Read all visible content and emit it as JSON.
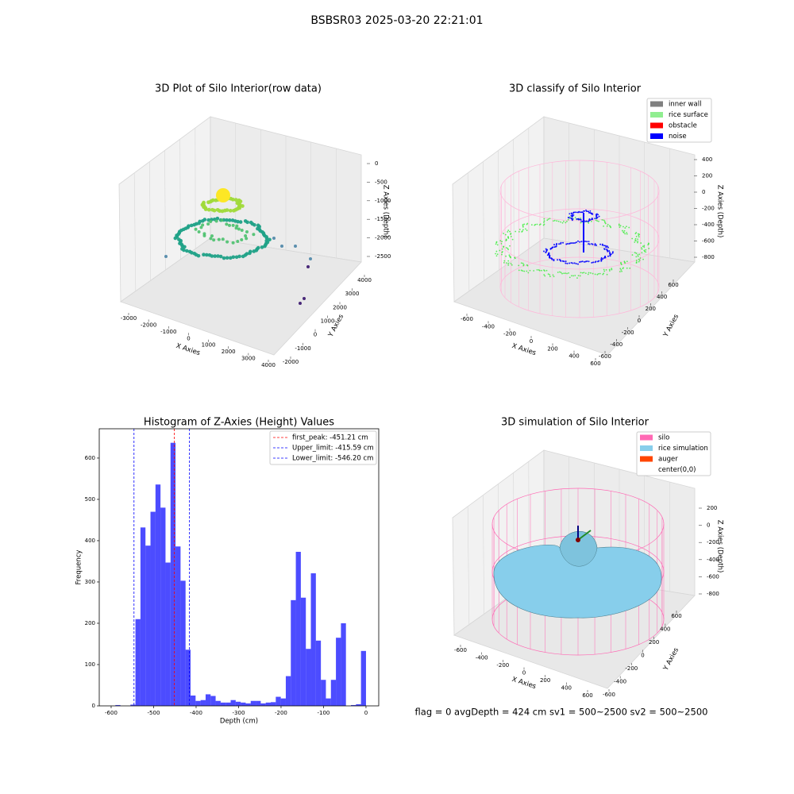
{
  "figure_title": "BSBSR03 2025-03-20 22:21:01",
  "status_text": "flag = 0     avgDepth = 424 cm  sv1 = 500~2500  sv2 = 500~2500",
  "chart_data": [
    {
      "type": "scatter3d",
      "title": "3D Plot of Silo Interior(row data)",
      "xlabel": "X Axies",
      "ylabel": "Y Axies",
      "zlabel": "Z Axies (Depth)",
      "xticks": [
        -3000,
        -2000,
        -1000,
        0,
        1000,
        2000,
        3000,
        4000
      ],
      "yticks": [
        -2000,
        -1000,
        0,
        1000,
        2000,
        3000,
        4000
      ],
      "zticks": [
        0,
        -500,
        -1000,
        -1500,
        -2000,
        -2500
      ]
    },
    {
      "type": "scatter3d",
      "title": "3D classify of Silo Interior",
      "xlabel": "X Axies",
      "ylabel": "Y Axies",
      "zlabel": "Z Axies (Depth)",
      "xticks": [
        -600,
        -400,
        -200,
        0,
        200,
        400,
        600
      ],
      "yticks": [
        -600,
        -400,
        -200,
        0,
        200,
        400,
        600
      ],
      "zticks": [
        400,
        200,
        0,
        -200,
        -400,
        -600,
        -800
      ],
      "legend": [
        {
          "name": "inner wall",
          "color": "#808080"
        },
        {
          "name": "rice surface",
          "color": "#90ee90"
        },
        {
          "name": "obstacle",
          "color": "#ff0000"
        },
        {
          "name": "noise",
          "color": "#0000ff"
        }
      ]
    },
    {
      "type": "histogram",
      "title": "Histogram of Z-Axies (Height) Values",
      "xlabel": "Depth (cm)",
      "ylabel": "Frequency",
      "color": "#0000ff",
      "bins": [
        -590,
        -578.2,
        -566.4,
        -554.6,
        -542.8,
        -531,
        -519.2,
        -507.4,
        -495.6,
        -483.8,
        -472,
        -460.2,
        -448.4,
        -436.6,
        -424.8,
        -413,
        -401.2,
        -389.4,
        -377.6,
        -365.8,
        -354,
        -342.2,
        -330.4,
        -318.6,
        -306.8,
        -295,
        -283.2,
        -271.4,
        -259.6,
        -247.8,
        -236,
        -224.2,
        -212.4,
        -200.6,
        -188.8,
        -177,
        -165.2,
        -153.4,
        -141.6,
        -129.8,
        -118,
        -106.2,
        -94.4,
        -82.6,
        -70.8,
        -59,
        -47.2,
        -35.4,
        -23.6,
        -11.8,
        0
      ],
      "counts": [
        2,
        0,
        0,
        3,
        210,
        432,
        388,
        470,
        536,
        480,
        347,
        637,
        386,
        303,
        136,
        25,
        12,
        14,
        28,
        24,
        12,
        8,
        8,
        14,
        10,
        8,
        6,
        12,
        12,
        6,
        8,
        9,
        22,
        18,
        72,
        256,
        373,
        262,
        138,
        321,
        158,
        63,
        18,
        63,
        165,
        200,
        0,
        2,
        4,
        133
      ],
      "lines": [
        {
          "label": "first_peak: -451.21 cm",
          "value": -451.21,
          "color": "#ff0000"
        },
        {
          "label": "Upper_limit: -415.59 cm",
          "value": -415.59,
          "color": "#0000ff"
        },
        {
          "label": "Lower_limit: -546.20 cm",
          "value": -546.2,
          "color": "#0000ff"
        }
      ],
      "xlim": [
        -628,
        30
      ],
      "xticks": [
        -600,
        -500,
        -400,
        -300,
        -200,
        -100,
        0
      ],
      "ylim": [
        0,
        671
      ],
      "yticks": [
        0,
        100,
        200,
        300,
        400,
        500,
        600
      ],
      "legend_position": "upper right"
    },
    {
      "type": "surface3d",
      "title": "3D simulation of Silo Interior",
      "xlabel": "X Axies",
      "ylabel": "Y Axies",
      "zlabel": "Z Axies (Depth)",
      "xticks": [
        -600,
        -400,
        -200,
        0,
        200,
        400,
        600
      ],
      "yticks": [
        -600,
        -400,
        -200,
        0,
        200,
        400,
        600
      ],
      "zticks": [
        200,
        0,
        -200,
        -400,
        -600,
        -800
      ],
      "legend": [
        {
          "name": "silo",
          "color": "#ff69b4"
        },
        {
          "name": "rice simulation",
          "color": "#87ceeb"
        },
        {
          "name": "auger",
          "color": "#ff4500"
        },
        {
          "name": "center(0,0)",
          "color": "#ffffff"
        }
      ]
    }
  ]
}
